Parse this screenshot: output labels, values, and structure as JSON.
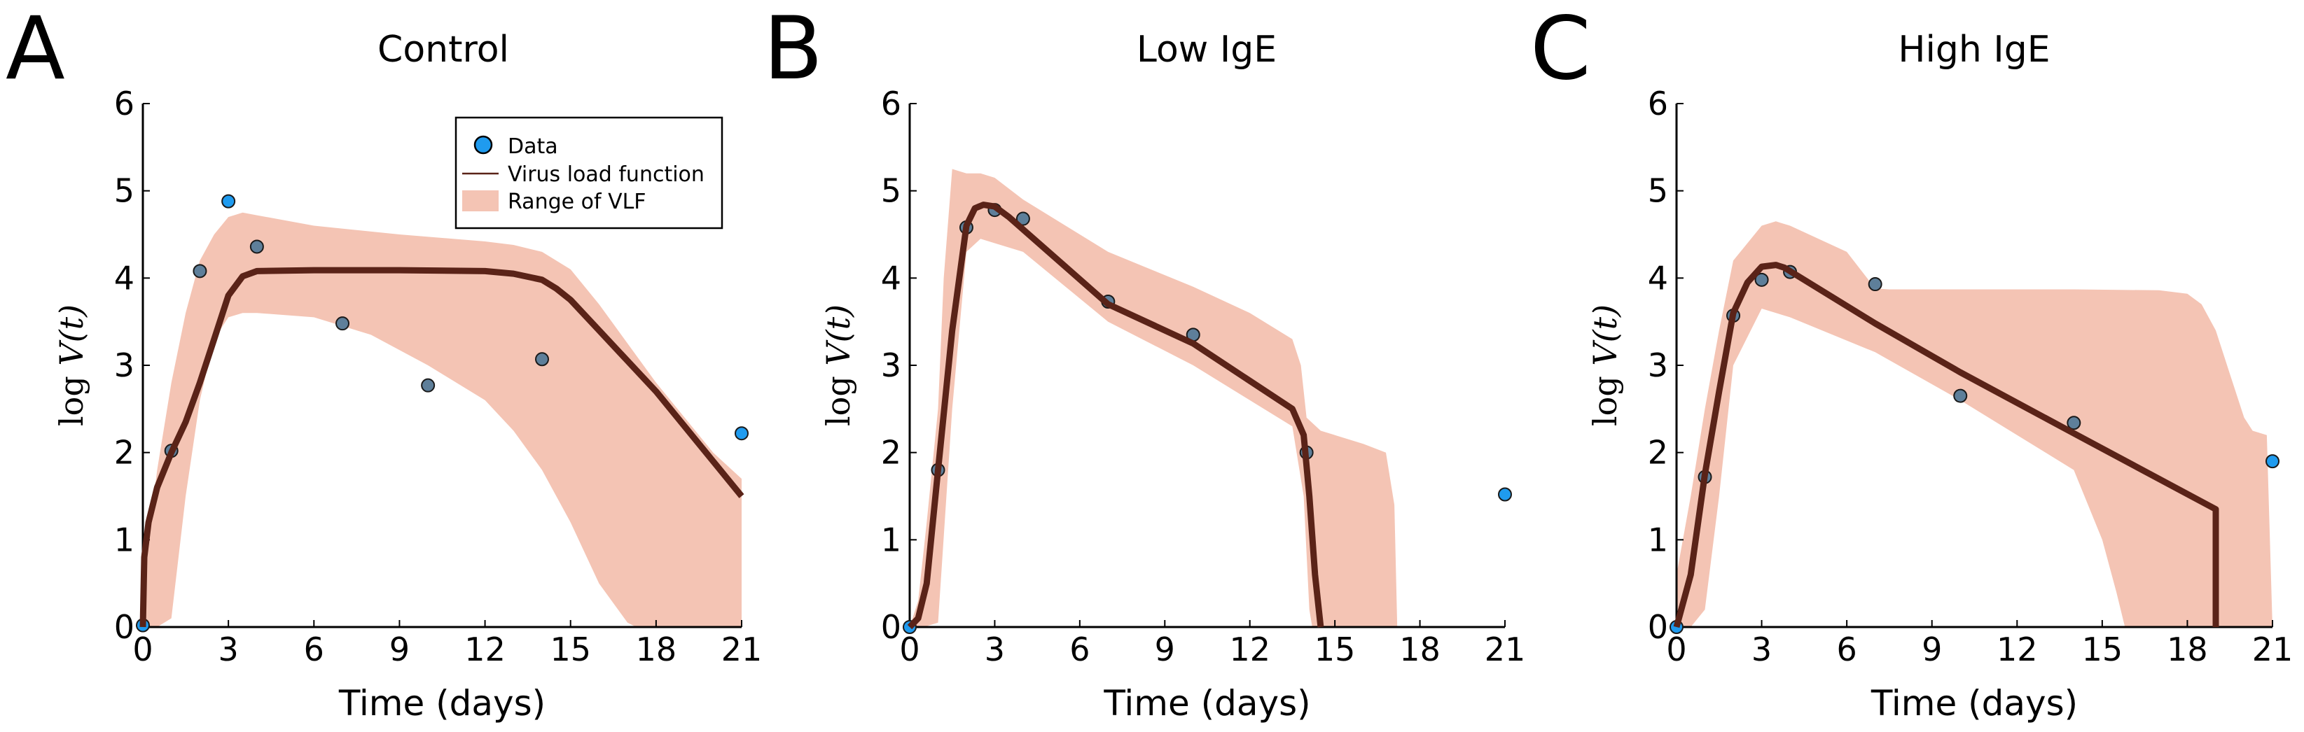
{
  "figure": {
    "xlabel": "Time (days)",
    "ylabel_prefix": "log",
    "ylabel_var": "V",
    "ylabel_arg": "(t)",
    "legend": [
      {
        "key": "data",
        "label": "Data"
      },
      {
        "key": "vlf",
        "label": "Virus load function"
      },
      {
        "key": "range",
        "label": "Range of VLF"
      }
    ],
    "colors": {
      "data": "#1f9bef",
      "data_overlay": "#5e7f9a",
      "vlf": "#5a2318",
      "range": "#f4c4b4",
      "axis": "#000000",
      "text": "#000000"
    }
  },
  "chart_data": [
    {
      "type": "line",
      "panel": "A",
      "title": "Control",
      "xlabel": "Time (days)",
      "ylabel": "log V(t)",
      "xlim": [
        0,
        21
      ],
      "ylim": [
        0,
        6
      ],
      "xticks": [
        0,
        3,
        6,
        9,
        12,
        15,
        18,
        21
      ],
      "yticks": [
        0,
        1,
        2,
        3,
        4,
        5,
        6
      ],
      "legend_position": "top-right",
      "data_points": {
        "x": [
          0,
          1,
          2,
          3,
          4,
          7,
          10,
          14,
          21
        ],
        "y": [
          0.02,
          2.02,
          4.08,
          4.88,
          4.36,
          3.48,
          2.77,
          3.07,
          2.22
        ]
      },
      "vlf": {
        "x": [
          0,
          0.05,
          0.2,
          0.5,
          1,
          1.5,
          2,
          2.5,
          3,
          3.5,
          4,
          6,
          9,
          12,
          13,
          14,
          14.5,
          15,
          16,
          18,
          21
        ],
        "y": [
          0,
          0.8,
          1.2,
          1.6,
          2.0,
          2.35,
          2.8,
          3.3,
          3.8,
          4.02,
          4.08,
          4.09,
          4.09,
          4.08,
          4.05,
          3.98,
          3.88,
          3.75,
          3.4,
          2.7,
          1.5
        ]
      },
      "range_upper": {
        "x": [
          0,
          0.5,
          1,
          1.5,
          2,
          2.5,
          3,
          3.5,
          4,
          6,
          9,
          12,
          13,
          14,
          15,
          16,
          17,
          18,
          19,
          20,
          21
        ],
        "y": [
          0.5,
          1.8,
          2.8,
          3.6,
          4.2,
          4.5,
          4.7,
          4.75,
          4.72,
          4.6,
          4.5,
          4.42,
          4.38,
          4.3,
          4.1,
          3.7,
          3.25,
          2.8,
          2.4,
          2.0,
          1.7
        ]
      },
      "range_lower": {
        "x": [
          0,
          0.5,
          1,
          1.5,
          2,
          2.5,
          3,
          3.5,
          4,
          6,
          8,
          10,
          12,
          13,
          14,
          15,
          16,
          17,
          17.3,
          21
        ],
        "y": [
          0,
          0,
          0.1,
          1.5,
          2.6,
          3.3,
          3.55,
          3.6,
          3.6,
          3.55,
          3.35,
          3.0,
          2.6,
          2.25,
          1.8,
          1.2,
          0.5,
          0.05,
          0,
          0
        ]
      }
    },
    {
      "type": "line",
      "panel": "B",
      "title": "Low IgE",
      "xlabel": "Time (days)",
      "ylabel": "log V(t)",
      "xlim": [
        0,
        21
      ],
      "ylim": [
        0,
        6
      ],
      "xticks": [
        0,
        3,
        6,
        9,
        12,
        15,
        18,
        21
      ],
      "yticks": [
        0,
        1,
        2,
        3,
        4,
        5,
        6
      ],
      "data_points": {
        "x": [
          0,
          1,
          2,
          3,
          4,
          7,
          10,
          14,
          21
        ],
        "y": [
          0.0,
          1.8,
          4.58,
          4.78,
          4.68,
          3.73,
          3.35,
          2.0,
          1.52
        ]
      },
      "vlf": {
        "x": [
          0,
          0.3,
          0.6,
          1,
          1.5,
          2,
          2.3,
          2.6,
          3,
          3.5,
          7,
          10,
          13.5,
          13.9,
          14.1,
          14.3,
          14.5
        ],
        "y": [
          0,
          0.1,
          0.5,
          1.8,
          3.4,
          4.6,
          4.8,
          4.84,
          4.82,
          4.7,
          3.7,
          3.25,
          2.5,
          2.2,
          1.5,
          0.6,
          0
        ]
      },
      "range_upper": {
        "x": [
          0,
          0.3,
          0.6,
          1,
          1.2,
          1.5,
          2,
          2.5,
          3,
          4,
          7,
          10,
          12,
          13.5,
          13.8,
          14,
          14.5,
          15,
          16,
          16.8,
          17.1,
          17.2
        ],
        "y": [
          0,
          0.3,
          1.2,
          2.5,
          4.0,
          5.25,
          5.2,
          5.2,
          5.15,
          4.9,
          4.3,
          3.9,
          3.6,
          3.3,
          3.0,
          2.4,
          2.25,
          2.2,
          2.1,
          2.0,
          1.4,
          0
        ]
      },
      "range_lower": {
        "x": [
          0,
          0.5,
          1,
          1.5,
          2,
          2.5,
          3,
          4,
          7,
          10,
          12,
          13.5,
          13.9,
          14.1,
          14.2,
          21
        ],
        "y": [
          0,
          0,
          0.05,
          2.5,
          4.3,
          4.45,
          4.4,
          4.3,
          3.5,
          3.0,
          2.6,
          2.3,
          1.5,
          0.2,
          0,
          0
        ]
      }
    },
    {
      "type": "line",
      "panel": "C",
      "title": "High IgE",
      "xlabel": "Time (days)",
      "ylabel": "log V(t)",
      "xlim": [
        0,
        21
      ],
      "ylim": [
        0,
        6
      ],
      "xticks": [
        0,
        3,
        6,
        9,
        12,
        15,
        18,
        21
      ],
      "yticks": [
        0,
        1,
        2,
        3,
        4,
        5,
        6
      ],
      "data_points": {
        "x": [
          0,
          1,
          2,
          3,
          4,
          7,
          10,
          14,
          21
        ],
        "y": [
          0.0,
          1.72,
          3.57,
          3.98,
          4.07,
          3.93,
          2.65,
          2.34,
          1.9
        ]
      },
      "vlf": {
        "x": [
          0,
          0.5,
          1,
          1.5,
          2,
          2.5,
          3,
          3.5,
          3.8,
          4,
          7,
          10,
          14,
          19,
          19,
          19
        ],
        "y": [
          0,
          0.6,
          1.75,
          2.7,
          3.6,
          3.95,
          4.13,
          4.15,
          4.12,
          4.08,
          3.48,
          2.92,
          2.22,
          1.35,
          1.35,
          0
        ]
      },
      "range_upper": {
        "x": [
          0,
          0.5,
          1,
          1.5,
          2,
          3,
          3.5,
          4,
          6,
          7,
          7.5,
          10,
          14,
          17,
          18,
          18.5,
          19,
          19.5,
          20,
          20.2,
          20.3,
          20.8
        ],
        "y": [
          0.6,
          1.5,
          2.5,
          3.4,
          4.2,
          4.6,
          4.65,
          4.6,
          4.3,
          3.88,
          3.87,
          3.87,
          3.87,
          3.86,
          3.82,
          3.7,
          3.4,
          2.9,
          2.4,
          2.3,
          2.25,
          2.2
        ]
      },
      "range_lower": {
        "x": [
          0,
          0.5,
          1,
          1.5,
          2,
          3,
          4,
          7,
          10,
          12,
          14,
          15,
          15.5,
          15.8,
          21
        ],
        "y": [
          0,
          0,
          0.2,
          1.5,
          3.0,
          3.65,
          3.55,
          3.15,
          2.6,
          2.2,
          1.8,
          1.0,
          0.4,
          0,
          0
        ]
      }
    }
  ]
}
